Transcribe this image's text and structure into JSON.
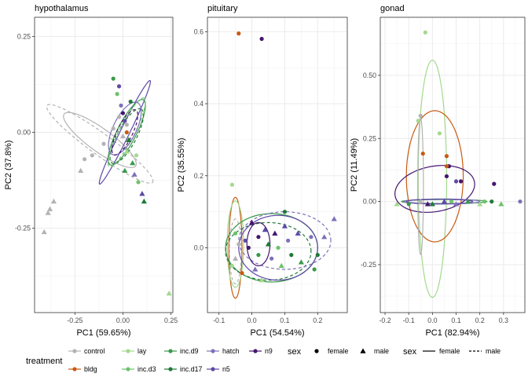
{
  "colors": {
    "control": "#b3b3b3",
    "bldg": "#c85a12",
    "lay": "#a3d98f",
    "inc.d3": "#6cc36a",
    "inc.d9": "#3a9a4a",
    "inc.d17": "#1f7a36",
    "hatch": "#7d70b8",
    "n5": "#5e4aa6",
    "n9": "#45156f"
  },
  "chart_data": [
    {
      "type": "scatter",
      "title": "hypothalamus",
      "xlabel": "PC1 (59.65%)",
      "ylabel": "PC2 (37.8%)",
      "xlim": [
        -0.46,
        0.26
      ],
      "ylim": [
        -0.47,
        0.3
      ],
      "xticks": [
        -0.25,
        0.0,
        0.25
      ],
      "yticks": [
        0.25,
        0.0,
        -0.25
      ],
      "xtick_labels": [
        "-0.25",
        "0.00",
        "0.25"
      ],
      "ytick_labels": [
        "0.25",
        "0.00",
        "-0.25"
      ],
      "points": [
        {
          "x": -0.41,
          "y": -0.26,
          "g": "control",
          "sex": "male"
        },
        {
          "x": -0.39,
          "y": -0.21,
          "g": "control",
          "sex": "male"
        },
        {
          "x": -0.38,
          "y": -0.2,
          "g": "control",
          "sex": "male"
        },
        {
          "x": -0.36,
          "y": -0.18,
          "g": "control",
          "sex": "male"
        },
        {
          "x": -0.22,
          "y": -0.1,
          "g": "control",
          "sex": "male"
        },
        {
          "x": -0.16,
          "y": -0.06,
          "g": "control",
          "sex": "female"
        },
        {
          "x": -0.2,
          "y": -0.07,
          "g": "control",
          "sex": "female"
        },
        {
          "x": -0.1,
          "y": -0.03,
          "g": "control",
          "sex": "female"
        },
        {
          "x": -0.05,
          "y": 0.01,
          "g": "control",
          "sex": "female"
        },
        {
          "x": -0.02,
          "y": 0.04,
          "g": "control",
          "sex": "female"
        },
        {
          "x": 0.02,
          "y": 0.02,
          "g": "control",
          "sex": "female"
        },
        {
          "x": 0.0,
          "y": -0.01,
          "g": "control",
          "sex": "male"
        },
        {
          "x": 0.24,
          "y": -0.42,
          "g": "lay",
          "sex": "male"
        },
        {
          "x": -0.05,
          "y": 0.14,
          "g": "inc.d9",
          "sex": "female"
        },
        {
          "x": -0.03,
          "y": 0.1,
          "g": "inc.d3",
          "sex": "female"
        },
        {
          "x": -0.01,
          "y": 0.07,
          "g": "hatch",
          "sex": "female"
        },
        {
          "x": 0.0,
          "y": 0.05,
          "g": "n9",
          "sex": "female"
        },
        {
          "x": 0.01,
          "y": 0.03,
          "g": "n5",
          "sex": "female"
        },
        {
          "x": 0.02,
          "y": 0.0,
          "g": "bldg",
          "sex": "female"
        },
        {
          "x": 0.03,
          "y": -0.02,
          "g": "inc.d17",
          "sex": "male"
        },
        {
          "x": 0.02,
          "y": -0.05,
          "g": "lay",
          "sex": "male"
        },
        {
          "x": 0.05,
          "y": -0.08,
          "g": "inc.d9",
          "sex": "male"
        },
        {
          "x": 0.06,
          "y": -0.11,
          "g": "hatch",
          "sex": "male"
        },
        {
          "x": 0.08,
          "y": -0.13,
          "g": "inc.d3",
          "sex": "female"
        },
        {
          "x": 0.1,
          "y": -0.16,
          "g": "n5",
          "sex": "male"
        },
        {
          "x": 0.11,
          "y": -0.18,
          "g": "inc.d17",
          "sex": "male"
        },
        {
          "x": -0.02,
          "y": 0.12,
          "g": "n5",
          "sex": "female"
        },
        {
          "x": 0.04,
          "y": 0.08,
          "g": "inc.d17",
          "sex": "female"
        },
        {
          "x": 0.01,
          "y": -0.1,
          "g": "inc.d9",
          "sex": "male"
        },
        {
          "x": 0.07,
          "y": -0.06,
          "g": "lay",
          "sex": "female"
        }
      ],
      "ellipses": [
        {
          "g": "control",
          "sex": "male",
          "cx": -0.12,
          "cy": -0.03,
          "rx": 0.34,
          "ry": 0.028,
          "angle": -36
        },
        {
          "g": "control",
          "sex": "female",
          "cx": -0.12,
          "cy": -0.02,
          "rx": 0.23,
          "ry": 0.03,
          "angle": -36
        },
        {
          "g": "n5",
          "sex": "female",
          "cx": 0.01,
          "cy": 0.0,
          "rx": 0.3,
          "ry": 0.012,
          "angle": 64
        },
        {
          "g": "inc.d9",
          "sex": "female",
          "cx": 0.02,
          "cy": 0.0,
          "rx": 0.19,
          "ry": 0.025,
          "angle": 63
        },
        {
          "g": "inc.d17",
          "sex": "male",
          "cx": 0.02,
          "cy": -0.01,
          "rx": 0.16,
          "ry": 0.025,
          "angle": 62
        },
        {
          "g": "inc.d3",
          "sex": "male",
          "cx": 0.02,
          "cy": 0.0,
          "rx": 0.2,
          "ry": 0.02,
          "angle": 63
        },
        {
          "g": "hatch",
          "sex": "female",
          "cx": 0.01,
          "cy": 0.01,
          "rx": 0.15,
          "ry": 0.03,
          "angle": 64
        },
        {
          "g": "n9",
          "sex": "male",
          "cx": 0.01,
          "cy": 0.0,
          "rx": 0.13,
          "ry": 0.02,
          "angle": 64
        }
      ]
    },
    {
      "type": "scatter",
      "title": "pituitary",
      "xlabel": "PC1 (54.54%)",
      "ylabel": "PC2 (35.55%)",
      "xlim": [
        -0.135,
        0.29
      ],
      "ylim": [
        -0.18,
        0.64
      ],
      "xticks": [
        -0.1,
        0.0,
        0.1,
        0.2
      ],
      "yticks": [
        0.6,
        0.4,
        0.2,
        0.0
      ],
      "xtick_labels": [
        "-0.1",
        "0.0",
        "0.1",
        "0.2"
      ],
      "ytick_labels": [
        "0.6",
        "0.4",
        "0.2",
        "0.0"
      ],
      "points": [
        {
          "x": -0.04,
          "y": 0.595,
          "g": "bldg",
          "sex": "female"
        },
        {
          "x": 0.03,
          "y": 0.58,
          "g": "n9",
          "sex": "female"
        },
        {
          "x": -0.06,
          "y": 0.175,
          "g": "lay",
          "sex": "female"
        },
        {
          "x": 0.25,
          "y": 0.08,
          "g": "hatch",
          "sex": "male"
        },
        {
          "x": 0.22,
          "y": 0.03,
          "g": "hatch",
          "sex": "male"
        },
        {
          "x": 0.1,
          "y": 0.06,
          "g": "n5",
          "sex": "male"
        },
        {
          "x": 0.14,
          "y": 0.04,
          "g": "n5",
          "sex": "male"
        },
        {
          "x": 0.18,
          "y": 0.03,
          "g": "hatch",
          "sex": "female"
        },
        {
          "x": 0.2,
          "y": -0.02,
          "g": "inc.d17",
          "sex": "female"
        },
        {
          "x": 0.19,
          "y": -0.06,
          "g": "inc.d9",
          "sex": "female"
        },
        {
          "x": 0.1,
          "y": 0.1,
          "g": "inc.d17",
          "sex": "female"
        },
        {
          "x": 0.0,
          "y": 0.07,
          "g": "n9",
          "sex": "male"
        },
        {
          "x": 0.02,
          "y": 0.03,
          "g": "n9",
          "sex": "female"
        },
        {
          "x": 0.04,
          "y": 0.05,
          "g": "n5",
          "sex": "male"
        },
        {
          "x": -0.01,
          "y": 0.0,
          "g": "n9",
          "sex": "female"
        },
        {
          "x": 0.02,
          "y": -0.02,
          "g": "inc.d9",
          "sex": "female"
        },
        {
          "x": 0.06,
          "y": -0.03,
          "g": "hatch",
          "sex": "female"
        },
        {
          "x": 0.08,
          "y": 0.0,
          "g": "inc.d3",
          "sex": "female"
        },
        {
          "x": 0.12,
          "y": -0.02,
          "g": "inc.d17",
          "sex": "female"
        },
        {
          "x": 0.15,
          "y": -0.04,
          "g": "inc.d9",
          "sex": "male"
        },
        {
          "x": -0.05,
          "y": -0.03,
          "g": "control",
          "sex": "male"
        },
        {
          "x": -0.06,
          "y": -0.05,
          "g": "lay",
          "sex": "female"
        },
        {
          "x": -0.03,
          "y": -0.07,
          "g": "bldg",
          "sex": "female"
        },
        {
          "x": -0.05,
          "y": 0.04,
          "g": "inc.d3",
          "sex": "female"
        },
        {
          "x": 0.01,
          "y": -0.06,
          "g": "hatch",
          "sex": "male"
        },
        {
          "x": 0.05,
          "y": 0.01,
          "g": "inc.d17",
          "sex": "male"
        },
        {
          "x": -0.02,
          "y": 0.02,
          "g": "n5",
          "sex": "female"
        },
        {
          "x": 0.09,
          "y": -0.05,
          "g": "inc.d3",
          "sex": "male"
        },
        {
          "x": 0.03,
          "y": -0.09,
          "g": "lay",
          "sex": "male"
        },
        {
          "x": 0.11,
          "y": 0.02,
          "g": "hatch",
          "sex": "female"
        },
        {
          "x": -0.04,
          "y": 0.01,
          "g": "control",
          "sex": "female"
        },
        {
          "x": 0.07,
          "y": 0.04,
          "g": "n9",
          "sex": "male"
        }
      ],
      "ellipses": [
        {
          "g": "bldg",
          "sex": "female",
          "cx": -0.05,
          "cy": 0.0,
          "rx": 0.02,
          "ry": 0.14,
          "angle": 0
        },
        {
          "g": "lay",
          "sex": "female",
          "cx": -0.05,
          "cy": 0.01,
          "rx": 0.025,
          "ry": 0.12,
          "angle": 0
        },
        {
          "g": "control",
          "sex": "male",
          "cx": -0.05,
          "cy": -0.01,
          "rx": 0.018,
          "ry": 0.09,
          "angle": 0
        },
        {
          "g": "inc.d9",
          "sex": "female",
          "cx": 0.06,
          "cy": 0.0,
          "rx": 0.14,
          "ry": 0.095,
          "angle": 0
        },
        {
          "g": "inc.d17",
          "sex": "male",
          "cx": 0.05,
          "cy": -0.01,
          "rx": 0.13,
          "ry": 0.08,
          "angle": 0
        },
        {
          "g": "n5",
          "sex": "female",
          "cx": 0.08,
          "cy": 0.0,
          "rx": 0.12,
          "ry": 0.09,
          "angle": 0
        },
        {
          "g": "hatch",
          "sex": "male",
          "cx": 0.1,
          "cy": 0.02,
          "rx": 0.14,
          "ry": 0.08,
          "angle": 0
        },
        {
          "g": "n9",
          "sex": "female",
          "cx": 0.02,
          "cy": 0.01,
          "rx": 0.035,
          "ry": 0.06,
          "angle": 0
        }
      ]
    },
    {
      "type": "scatter",
      "title": "gonad",
      "xlabel": "PC1 (82.94%)",
      "ylabel": "PC2 (11.49%)",
      "xlim": [
        -0.22,
        0.39
      ],
      "ylim": [
        -0.44,
        0.73
      ],
      "xticks": [
        -0.2,
        -0.1,
        0.0,
        0.1,
        0.2,
        0.3
      ],
      "yticks": [
        0.5,
        0.25,
        0.0,
        -0.25
      ],
      "xtick_labels": [
        "-0.2",
        "-0.1",
        "0.0",
        "0.1",
        "0.2",
        "0.3"
      ],
      "ytick_labels": [
        "0.50",
        "0.25",
        "0.00",
        "-0.25"
      ],
      "points": [
        {
          "x": -0.03,
          "y": 0.67,
          "g": "lay",
          "sex": "female"
        },
        {
          "x": -0.05,
          "y": 0.34,
          "g": "control",
          "sex": "female"
        },
        {
          "x": -0.06,
          "y": 0.32,
          "g": "lay",
          "sex": "female"
        },
        {
          "x": 0.03,
          "y": 0.27,
          "g": "lay",
          "sex": "female"
        },
        {
          "x": -0.04,
          "y": 0.19,
          "g": "bldg",
          "sex": "female"
        },
        {
          "x": 0.06,
          "y": 0.18,
          "g": "bldg",
          "sex": "female"
        },
        {
          "x": 0.07,
          "y": 0.14,
          "g": "n9",
          "sex": "female"
        },
        {
          "x": 0.06,
          "y": 0.14,
          "g": "bldg",
          "sex": "female"
        },
        {
          "x": 0.06,
          "y": 0.1,
          "g": "n9",
          "sex": "female"
        },
        {
          "x": 0.12,
          "y": 0.08,
          "g": "n9",
          "sex": "female"
        },
        {
          "x": 0.26,
          "y": 0.07,
          "g": "n9",
          "sex": "female"
        },
        {
          "x": 0.1,
          "y": 0.08,
          "g": "n5",
          "sex": "female"
        },
        {
          "x": 0.37,
          "y": 0.0,
          "g": "hatch",
          "sex": "female"
        },
        {
          "x": 0.29,
          "y": -0.01,
          "g": "inc.d3",
          "sex": "male"
        },
        {
          "x": 0.25,
          "y": 0.0,
          "g": "inc.d17",
          "sex": "female"
        },
        {
          "x": 0.22,
          "y": 0.0,
          "g": "inc.d3",
          "sex": "female"
        },
        {
          "x": 0.2,
          "y": -0.01,
          "g": "lay",
          "sex": "male"
        },
        {
          "x": 0.15,
          "y": 0.0,
          "g": "inc.d9",
          "sex": "male"
        },
        {
          "x": 0.1,
          "y": -0.01,
          "g": "hatch",
          "sex": "male"
        },
        {
          "x": 0.05,
          "y": 0.0,
          "g": "n5",
          "sex": "male"
        },
        {
          "x": 0.0,
          "y": -0.01,
          "g": "inc.d17",
          "sex": "male"
        },
        {
          "x": -0.05,
          "y": 0.0,
          "g": "control",
          "sex": "male"
        },
        {
          "x": -0.1,
          "y": -0.01,
          "g": "inc.d9",
          "sex": "female"
        },
        {
          "x": -0.15,
          "y": -0.01,
          "g": "lay",
          "sex": "male"
        },
        {
          "x": -0.02,
          "y": -0.01,
          "g": "n9",
          "sex": "male"
        },
        {
          "x": 0.08,
          "y": 0.0,
          "g": "inc.d3",
          "sex": "female"
        }
      ],
      "ellipses": [
        {
          "g": "lay",
          "sex": "female",
          "cx": 0.0,
          "cy": 0.09,
          "rx": 0.06,
          "ry": 0.47,
          "angle": 0
        },
        {
          "g": "bldg",
          "sex": "female",
          "cx": 0.01,
          "cy": 0.1,
          "rx": 0.12,
          "ry": 0.26,
          "angle": 0
        },
        {
          "g": "n9",
          "sex": "female",
          "cx": 0.01,
          "cy": 0.05,
          "rx": 0.17,
          "ry": 0.09,
          "angle": 10
        },
        {
          "g": "control",
          "sex": "female",
          "cx": -0.05,
          "cy": 0.06,
          "rx": 0.012,
          "ry": 0.27,
          "angle": 0
        },
        {
          "g": "inc.d9",
          "sex": "female",
          "cx": 0.05,
          "cy": 0.0,
          "rx": 0.18,
          "ry": 0.008,
          "angle": 0
        },
        {
          "g": "hatch",
          "sex": "female",
          "cx": 0.04,
          "cy": 0.0,
          "rx": 0.16,
          "ry": 0.01,
          "angle": 0
        },
        {
          "g": "n5",
          "sex": "female",
          "cx": 0.03,
          "cy": 0.0,
          "rx": 0.14,
          "ry": 0.009,
          "angle": 0
        }
      ]
    }
  ],
  "legend": {
    "treatment_title": "treatment",
    "treatment_row1": [
      "control",
      "lay",
      "inc.d9",
      "hatch",
      "n9"
    ],
    "treatment_row2": [
      "bldg",
      "inc.d3",
      "inc.d17",
      "n5"
    ],
    "sex_shape_title": "sex",
    "sex_shape_items": [
      "female",
      "male"
    ],
    "sex_line_title": "sex",
    "sex_line_items": [
      "female",
      "male"
    ]
  }
}
